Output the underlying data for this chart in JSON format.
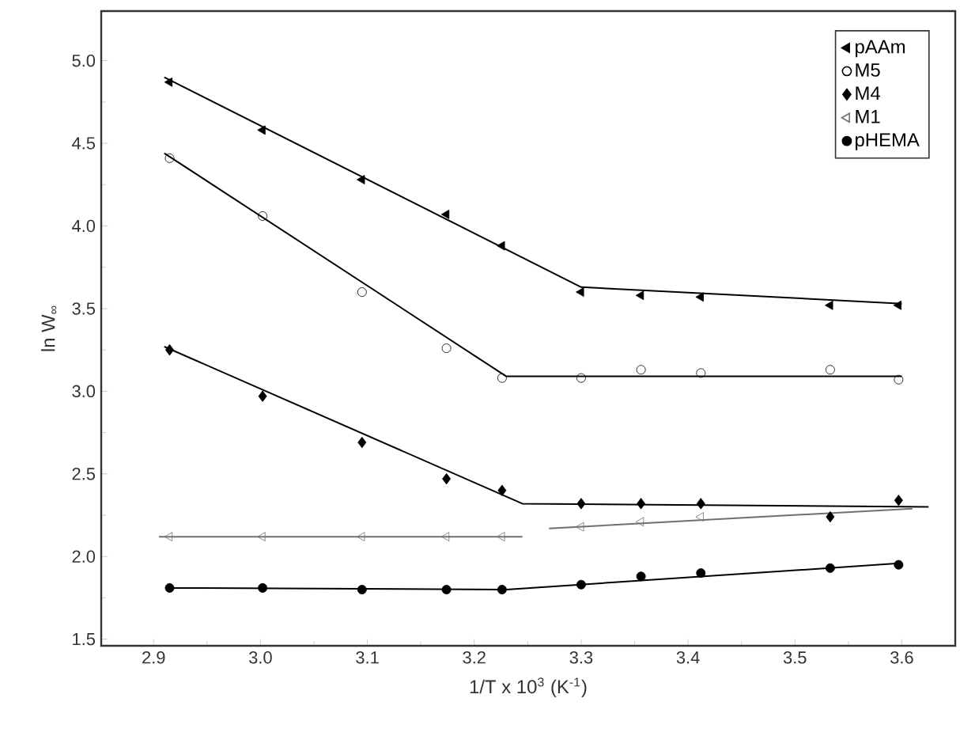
{
  "chart_data": {
    "type": "scatter",
    "xlabel": "1/T x 10$^{3}$ (K$^{-1}$)",
    "ylabel": "ln W$_{∞}$",
    "xlim": [
      2.851,
      3.65
    ],
    "ylim": [
      1.46,
      5.3
    ],
    "xticks": [
      2.9,
      {
        "value": 3,
        "label": "3.0"
      },
      3.1,
      3.2,
      3.3,
      3.4,
      3.5,
      3.6
    ],
    "yticks": [
      1.5,
      {
        "value": 2,
        "label": "2.0"
      },
      2.5,
      {
        "value": 3,
        "label": "3.0"
      },
      3.5,
      {
        "value": 4,
        "label": "4.0"
      },
      4.5,
      {
        "value": 5,
        "label": "5.0"
      }
    ],
    "grid": false,
    "legend": "top right",
    "series": [
      {
        "name": "pAAm",
        "marker": "triangle",
        "color": "#000000",
        "x": [
          2.915,
          3.002,
          3.095,
          3.174,
          3.226,
          3.3,
          3.356,
          3.412,
          3.533,
          3.597
        ],
        "values": [
          4.87,
          4.58,
          4.28,
          4.07,
          3.88,
          3.6,
          3.58,
          3.57,
          3.52,
          3.52
        ]
      },
      {
        "name": "M5",
        "marker": "circle",
        "color": "#000000",
        "x": [
          2.915,
          3.002,
          3.095,
          3.174,
          3.226,
          3.3,
          3.356,
          3.412,
          3.533,
          3.597
        ],
        "values": [
          4.41,
          4.06,
          3.6,
          3.26,
          3.08,
          3.08,
          3.13,
          3.11,
          3.13,
          3.07
        ]
      },
      {
        "name": "M4",
        "marker": "diamond",
        "color": "#000000",
        "x": [
          2.915,
          3.002,
          3.095,
          3.174,
          3.226,
          3.3,
          3.356,
          3.412,
          3.533,
          3.597
        ],
        "values": [
          3.25,
          2.97,
          2.69,
          2.47,
          2.4,
          2.32,
          2.32,
          2.32,
          2.24,
          2.34
        ]
      },
      {
        "name": "M1",
        "marker": "triangle",
        "color": "#707070",
        "x": [
          2.915,
          3.002,
          3.095,
          3.174,
          3.226,
          3.3,
          3.356,
          3.412
        ],
        "values": [
          2.12,
          2.12,
          2.12,
          2.12,
          2.12,
          2.18,
          2.21,
          2.24
        ]
      },
      {
        "name": "pHEMA",
        "marker": "circle",
        "color": "#000000",
        "x": [
          2.915,
          3.002,
          3.095,
          3.174,
          3.226,
          3.3,
          3.356,
          3.412,
          3.533,
          3.597
        ],
        "values": [
          1.81,
          1.81,
          1.8,
          1.8,
          1.8,
          1.83,
          1.88,
          1.9,
          1.93,
          1.95
        ]
      },
      {
        "type": "line",
        "color": "#000000",
        "x": [
          2.91,
          3.3,
          3.6
        ],
        "values": [
          4.9,
          3.63,
          3.53
        ]
      },
      {
        "type": "line",
        "color": "#000000",
        "x": [
          2.91,
          3.23,
          3.6
        ],
        "values": [
          4.44,
          3.09,
          3.09
        ]
      },
      {
        "type": "line",
        "color": "#000000",
        "x": [
          2.91,
          3.245,
          3.625
        ],
        "values": [
          3.27,
          2.32,
          2.3
        ]
      },
      {
        "type": "line",
        "color": "#707070",
        "x": [
          2.905,
          3.245
        ],
        "values": [
          2.12,
          2.12
        ]
      },
      {
        "type": "line",
        "color": "#707070",
        "x": [
          3.27,
          3.61
        ],
        "values": [
          2.17,
          2.29
        ]
      },
      {
        "type": "line",
        "color": "#000000",
        "x": [
          2.915,
          3.23,
          3.6
        ],
        "values": [
          1.81,
          1.8,
          1.96
        ]
      }
    ]
  }
}
